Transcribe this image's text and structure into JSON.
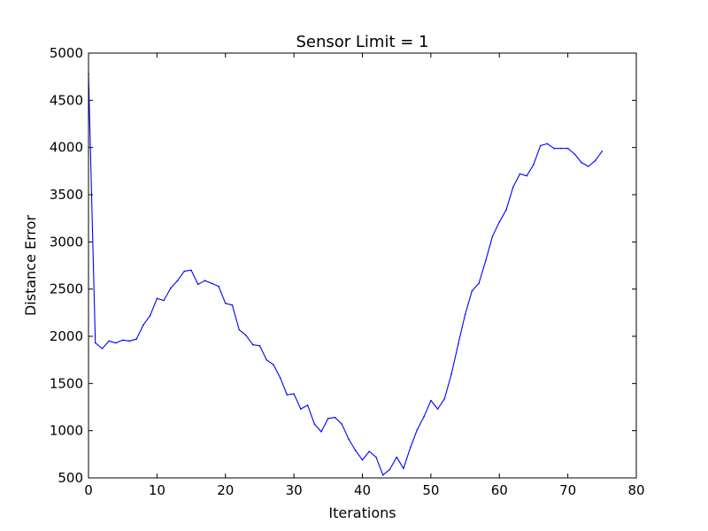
{
  "chart_data": {
    "type": "line",
    "title": "Sensor Limit = 1",
    "xlabel": "Iterations",
    "ylabel": "Distance Error",
    "xlim": [
      0,
      80
    ],
    "ylim": [
      500,
      5000
    ],
    "x_ticks": [
      0,
      10,
      20,
      30,
      40,
      50,
      60,
      70,
      80
    ],
    "y_ticks": [
      500,
      1000,
      1500,
      2000,
      2500,
      3000,
      3500,
      4000,
      4500,
      5000
    ],
    "grid": false,
    "legend": "none",
    "series": [
      {
        "name": "Distance Error",
        "color": "#0000ff",
        "x": [
          0,
          1,
          2,
          3,
          4,
          5,
          6,
          7,
          8,
          9,
          10,
          11,
          12,
          13,
          14,
          15,
          16,
          17,
          18,
          19,
          20,
          21,
          22,
          23,
          24,
          25,
          26,
          27,
          28,
          29,
          30,
          31,
          32,
          33,
          34,
          35,
          36,
          37,
          38,
          39,
          40,
          41,
          42,
          43,
          44,
          45,
          46,
          47,
          48,
          49,
          50,
          51,
          52,
          53,
          54,
          55,
          56,
          57,
          58,
          59,
          60,
          61,
          62,
          63,
          64,
          65,
          66,
          67,
          68,
          69,
          70,
          71,
          72,
          73,
          74,
          75
        ],
        "values": [
          4780,
          1930,
          1870,
          1950,
          1930,
          1960,
          1950,
          1970,
          2120,
          2220,
          2400,
          2380,
          2510,
          2590,
          2690,
          2700,
          2550,
          2590,
          2560,
          2530,
          2350,
          2330,
          2070,
          2010,
          1910,
          1900,
          1750,
          1700,
          1560,
          1380,
          1390,
          1230,
          1270,
          1070,
          990,
          1130,
          1140,
          1070,
          910,
          790,
          690,
          780,
          720,
          530,
          590,
          720,
          600,
          820,
          1010,
          1150,
          1320,
          1230,
          1340,
          1600,
          1920,
          2230,
          2480,
          2560,
          2800,
          3060,
          3210,
          3340,
          3580,
          3720,
          3700,
          3820,
          4020,
          4040,
          3990,
          3990,
          3990,
          3930,
          3840,
          3800,
          3860,
          3960
        ]
      }
    ]
  }
}
